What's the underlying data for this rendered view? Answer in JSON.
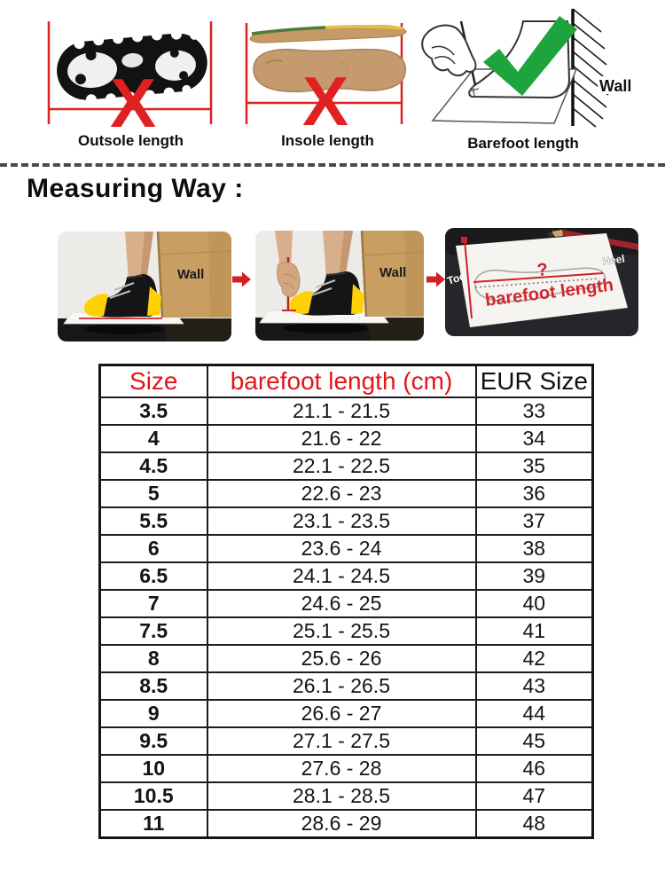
{
  "colors": {
    "accent_red": "#e02021",
    "check_green": "#1ea43c",
    "cardboard": "#c89e63",
    "sock_yellow": "#ffd104",
    "table_border": "#1c1c1c"
  },
  "length_guide": {
    "cross_glyph": "X",
    "figures": [
      {
        "caption": "Outsole length",
        "mark": "cross"
      },
      {
        "caption": "Insole length",
        "mark": "cross"
      },
      {
        "caption": "Barefoot length",
        "mark": "check",
        "wall_label": "Wall"
      }
    ]
  },
  "measuring": {
    "heading": "Measuring Way :",
    "photo1": {
      "wall_label": "Wall"
    },
    "photo2": {
      "wall_label": "Wall"
    },
    "photo3": {
      "toe_label": "Toe",
      "heel_label": "Heel",
      "question_mark": "?",
      "caption": "barefoot length"
    }
  },
  "size_table": {
    "headers": [
      "Size",
      "barefoot length (cm)",
      "EUR Size"
    ],
    "rows": [
      [
        "3.5",
        "21.1 - 21.5",
        "33"
      ],
      [
        "4",
        "21.6 - 22",
        "34"
      ],
      [
        "4.5",
        "22.1 - 22.5",
        "35"
      ],
      [
        "5",
        "22.6 - 23",
        "36"
      ],
      [
        "5.5",
        "23.1 - 23.5",
        "37"
      ],
      [
        "6",
        "23.6 - 24",
        "38"
      ],
      [
        "6.5",
        "24.1 - 24.5",
        "39"
      ],
      [
        "7",
        "24.6 - 25",
        "40"
      ],
      [
        "7.5",
        "25.1 - 25.5",
        "41"
      ],
      [
        "8",
        "25.6 - 26",
        "42"
      ],
      [
        "8.5",
        "26.1 - 26.5",
        "43"
      ],
      [
        "9",
        "26.6 - 27",
        "44"
      ],
      [
        "9.5",
        "27.1 - 27.5",
        "45"
      ],
      [
        "10",
        "27.6 - 28",
        "46"
      ],
      [
        "10.5",
        "28.1 - 28.5",
        "47"
      ],
      [
        "11",
        "28.6 - 29",
        "48"
      ]
    ]
  }
}
